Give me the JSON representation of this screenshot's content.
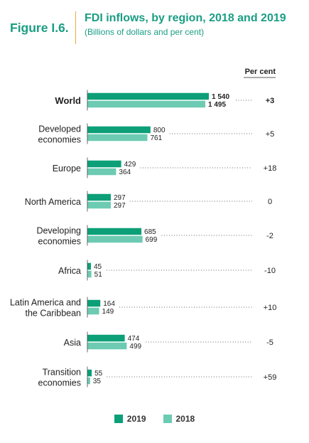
{
  "figure": {
    "label": "Figure I.6.",
    "title": "FDI inflows, by region, 2018 and 2019",
    "subtitle": "(Billions of dollars and per cent)",
    "accent_color": "#f0a73c"
  },
  "chart_data": {
    "type": "bar",
    "orientation": "horizontal",
    "title": "FDI inflows, by region, 2018 and 2019",
    "subtitle": "(Billions of dollars and per cent)",
    "column_header": "Per cent",
    "categories": [
      [
        "World"
      ],
      [
        "Developed",
        "economies"
      ],
      [
        "Europe"
      ],
      [
        "North America"
      ],
      [
        "Developing",
        "economies"
      ],
      [
        "Africa"
      ],
      [
        "Latin America and",
        "the Caribbean"
      ],
      [
        "Asia"
      ],
      [
        "Transition",
        "economies"
      ]
    ],
    "series": [
      {
        "name": "2019",
        "color": "#0c9f78",
        "values": [
          1540,
          800,
          429,
          297,
          685,
          45,
          164,
          474,
          55
        ],
        "labels": [
          "1 540",
          "800",
          "429",
          "297",
          "685",
          "45",
          "164",
          "474",
          "55"
        ]
      },
      {
        "name": "2018",
        "color": "#6ccbb2",
        "values": [
          1495,
          761,
          364,
          297,
          699,
          51,
          149,
          499,
          35
        ],
        "labels": [
          "1 495",
          "761",
          "364",
          "297",
          "699",
          "51",
          "149",
          "499",
          "35"
        ]
      }
    ],
    "percent_change": [
      "+3",
      "+5",
      "+18",
      "0",
      "-2",
      "-10",
      "+10",
      "-5",
      "+59"
    ],
    "bold_categories": [
      0
    ],
    "legend_placement": "bottom-center",
    "grid": false
  }
}
